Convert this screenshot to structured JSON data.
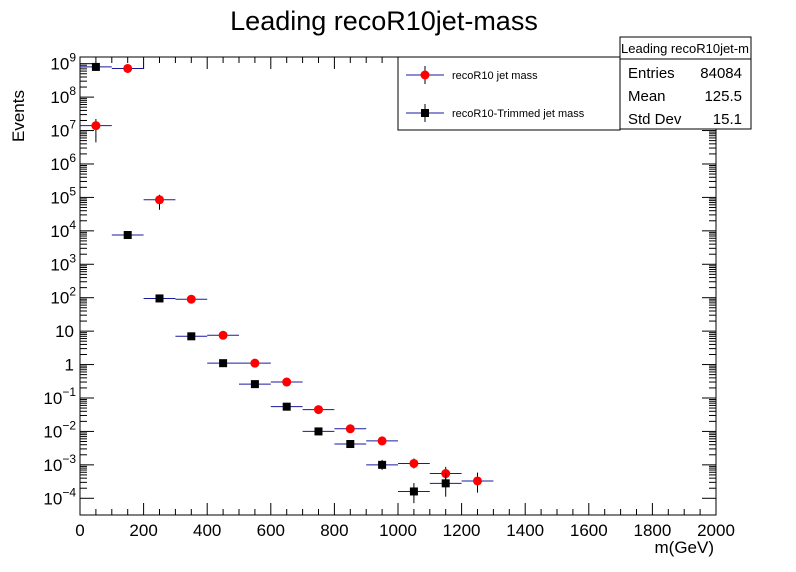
{
  "chart_data": {
    "type": "scatter",
    "title": "Leading recoR10jet-mass",
    "xlabel": "m(GeV)",
    "ylabel": "Events",
    "xlim": [
      0,
      2000
    ],
    "ylim_log10": [
      -4.5,
      9.2
    ],
    "x_ticks": [
      "0",
      "200",
      "400",
      "600",
      "800",
      "1000",
      "1200",
      "1400",
      "1600",
      "1800",
      "2000"
    ],
    "x_tick_values": [
      0,
      200,
      400,
      600,
      800,
      1000,
      1200,
      1400,
      1600,
      1800,
      2000
    ],
    "y_ticks": [
      {
        "base": "10",
        "exp": "9",
        "log": 9
      },
      {
        "base": "10",
        "exp": "8",
        "log": 8
      },
      {
        "base": "10",
        "exp": "7",
        "log": 7
      },
      {
        "base": "10",
        "exp": "6",
        "log": 6
      },
      {
        "base": "10",
        "exp": "5",
        "log": 5
      },
      {
        "base": "10",
        "exp": "4",
        "log": 4
      },
      {
        "base": "10",
        "exp": "3",
        "log": 3
      },
      {
        "base": "10",
        "exp": "2",
        "log": 2
      },
      {
        "base": "10",
        "exp": "",
        "log": 1
      },
      {
        "base": "1",
        "exp": "",
        "log": 0
      },
      {
        "base": "10",
        "exp": "−1",
        "log": -1
      },
      {
        "base": "10",
        "exp": "−2",
        "log": -2
      },
      {
        "base": "10",
        "exp": "−3",
        "log": -3
      },
      {
        "base": "10",
        "exp": "−4",
        "log": -4
      }
    ],
    "bin_half_width": 50,
    "series": [
      {
        "name": "recoR10 jet mass",
        "marker": "circle",
        "color": "#ff0000",
        "x": [
          50,
          150,
          250,
          350,
          450,
          550,
          650,
          750,
          850,
          950,
          1050,
          1150,
          1250
        ],
        "y": [
          14000000,
          720000000,
          85000,
          90,
          7.5,
          1.1,
          0.3,
          0.045,
          0.012,
          0.0052,
          0.0011,
          0.00055,
          0.00033
        ],
        "err_lo_log": [
          0.5,
          0.05,
          0.3,
          0.05,
          0.05,
          0.05,
          0.06,
          0.07,
          0.08,
          0.1,
          0.15,
          0.25,
          0.35
        ],
        "err_hi_log": [
          0.2,
          0.05,
          0.15,
          0.05,
          0.05,
          0.05,
          0.06,
          0.07,
          0.08,
          0.1,
          0.15,
          0.2,
          0.25
        ]
      },
      {
        "name": "recoR10-Trimmed jet mass",
        "marker": "square",
        "color": "#000000",
        "x": [
          50,
          150,
          250,
          350,
          450,
          550,
          650,
          750,
          850,
          950,
          1050,
          1150
        ],
        "y": [
          800000000,
          7500,
          95,
          7,
          1.1,
          0.26,
          0.055,
          0.01,
          0.0042,
          0.001,
          0.00016,
          0.00028
        ],
        "err_lo_log": [
          0.05,
          0.05,
          0.05,
          0.05,
          0.05,
          0.06,
          0.07,
          0.08,
          0.1,
          0.15,
          0.35,
          0.4
        ],
        "err_hi_log": [
          0.05,
          0.05,
          0.05,
          0.05,
          0.05,
          0.06,
          0.07,
          0.08,
          0.1,
          0.15,
          0.25,
          0.3
        ]
      }
    ]
  },
  "legend": {
    "entries": [
      "recoR10 jet mass",
      "recoR10-Trimmed jet mass"
    ]
  },
  "stats": {
    "title": "Leading recoR10jet-m",
    "rows": [
      {
        "label": "Entries",
        "value": "84084"
      },
      {
        "label": "Mean",
        "value": "125.5"
      },
      {
        "label": "Std Dev",
        "value": "15.1"
      }
    ]
  }
}
